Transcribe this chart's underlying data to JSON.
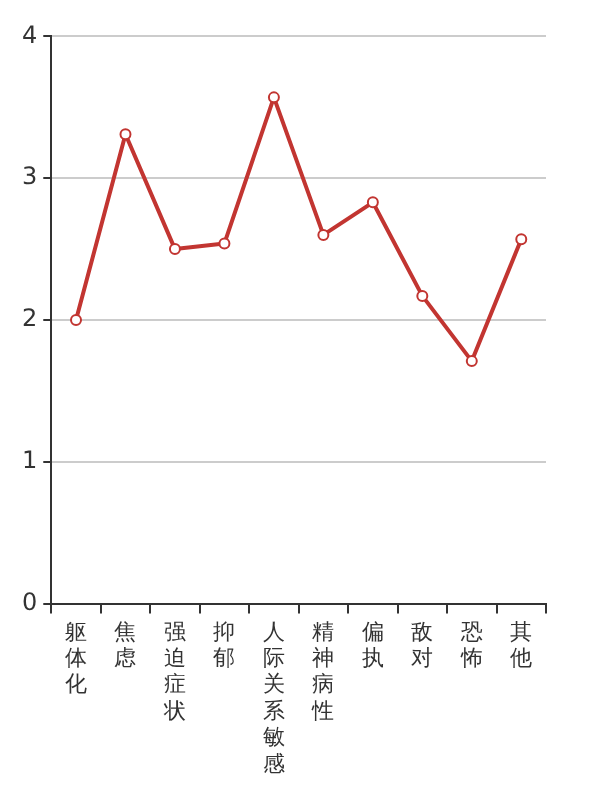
{
  "chart_data": {
    "type": "line",
    "categories": [
      "躯体化",
      "焦虑",
      "强迫症状",
      "抑郁",
      "人际关系敏感",
      "精神病性",
      "偏执",
      "敌对",
      "恐怖",
      "其他"
    ],
    "series": [
      {
        "color": "#c23531",
        "values": [
          2.0,
          3.31,
          2.5,
          2.54,
          3.57,
          2.6,
          2.83,
          2.17,
          1.71,
          2.57
        ]
      }
    ],
    "ylim": [
      0,
      4
    ],
    "yticks": [
      0,
      1,
      2,
      3,
      4
    ],
    "grid": "y",
    "legend": false,
    "marker": "circle",
    "line_style": "solid"
  }
}
